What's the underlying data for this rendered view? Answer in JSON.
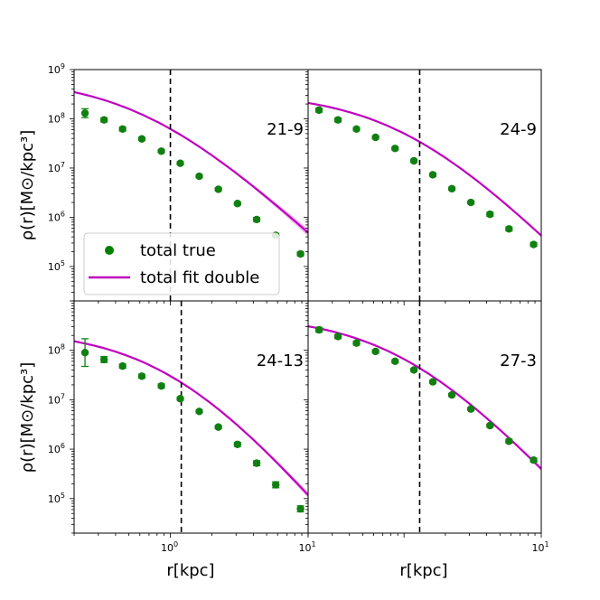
{
  "chart_data": {
    "type": "scatter",
    "layout": "2x2 grid, shared log axes",
    "x_scale": "log",
    "y_scale": "log",
    "xlim": [
      0.2,
      10
    ],
    "ylim": [
      20000,
      1000000000
    ],
    "xlabel": "r[kpc]",
    "ylabel": "ρ(r)[M⊙/kpc³]",
    "x_tick_labels": {
      "mantissa": "10",
      "exps": [
        "0",
        "1"
      ]
    },
    "y_tick_labels": {
      "mantissa": "10",
      "exps": [
        "5",
        "6",
        "7",
        "8",
        "9"
      ]
    },
    "legend": {
      "location": "lower-left of top-left panel",
      "entries": [
        {
          "label": "total true",
          "color": "#008000",
          "marker": "circle"
        },
        {
          "label": "total fit double",
          "color": "#bf00bf",
          "marker": "line"
        }
      ]
    },
    "colors": {
      "data": "#108010",
      "fit": "#c000c0",
      "band": "#e28ce2",
      "vline": "#000000"
    },
    "panels": [
      {
        "label": "21-9",
        "vline_x": 1.0,
        "true_points": [
          {
            "x": 0.24,
            "y": 130000000,
            "err": 0.09
          },
          {
            "x": 0.33,
            "y": 95000000,
            "err": 0.04
          },
          {
            "x": 0.45,
            "y": 62000000,
            "err": 0.04
          },
          {
            "x": 0.62,
            "y": 39000000,
            "err": 0.03
          },
          {
            "x": 0.86,
            "y": 22000000,
            "err": 0.03
          },
          {
            "x": 1.18,
            "y": 12500000,
            "err": 0.03
          },
          {
            "x": 1.62,
            "y": 6800000,
            "err": 0.03
          },
          {
            "x": 2.23,
            "y": 3700000,
            "err": 0.03
          },
          {
            "x": 3.07,
            "y": 1900000,
            "err": 0.03
          },
          {
            "x": 4.23,
            "y": 900000,
            "err": 0.04
          },
          {
            "x": 5.82,
            "y": 430000,
            "err": 0.04
          },
          {
            "x": 8.8,
            "y": 180000,
            "err": 0.04
          }
        ],
        "fit": {
          "rho0": 700000000,
          "rs": 0.65,
          "exponent": 2.6,
          "band": 0.08
        }
      },
      {
        "label": "24-9",
        "vline_x": 1.3,
        "true_points": [
          {
            "x": 0.24,
            "y": 150000000,
            "err": 0.04
          },
          {
            "x": 0.33,
            "y": 95000000,
            "err": 0.04
          },
          {
            "x": 0.45,
            "y": 62000000,
            "err": 0.03
          },
          {
            "x": 0.62,
            "y": 42000000,
            "err": 0.03
          },
          {
            "x": 0.86,
            "y": 25000000,
            "err": 0.03
          },
          {
            "x": 1.18,
            "y": 14000000,
            "err": 0.03
          },
          {
            "x": 1.62,
            "y": 7300000,
            "err": 0.03
          },
          {
            "x": 2.23,
            "y": 3800000,
            "err": 0.03
          },
          {
            "x": 3.07,
            "y": 2000000,
            "err": 0.03
          },
          {
            "x": 4.23,
            "y": 1150000,
            "err": 0.04
          },
          {
            "x": 5.82,
            "y": 580000,
            "err": 0.04
          },
          {
            "x": 8.8,
            "y": 280000,
            "err": 0.04
          }
        ],
        "fit": {
          "rho0": 350000000,
          "rs": 1.0,
          "exponent": 2.8,
          "band": 0.03
        }
      },
      {
        "label": "24-13",
        "vline_x": 1.2,
        "true_points": [
          {
            "x": 0.24,
            "y": 90000000,
            "err": 0.28
          },
          {
            "x": 0.33,
            "y": 65000000,
            "err": 0.06
          },
          {
            "x": 0.45,
            "y": 48000000,
            "err": 0.04
          },
          {
            "x": 0.62,
            "y": 30000000,
            "err": 0.04
          },
          {
            "x": 0.86,
            "y": 19000000,
            "err": 0.04
          },
          {
            "x": 1.18,
            "y": 10500000,
            "err": 0.03
          },
          {
            "x": 1.62,
            "y": 5800000,
            "err": 0.03
          },
          {
            "x": 2.23,
            "y": 2800000,
            "err": 0.03
          },
          {
            "x": 3.07,
            "y": 1250000,
            "err": 0.04
          },
          {
            "x": 4.23,
            "y": 520000,
            "err": 0.05
          },
          {
            "x": 5.82,
            "y": 190000,
            "err": 0.06
          },
          {
            "x": 8.8,
            "y": 62000,
            "err": 0.06
          }
        ],
        "fit": {
          "rho0": 270000000,
          "rs": 1.06,
          "exponent": 3.3,
          "band": 0.06
        }
      },
      {
        "label": "27-3",
        "vline_x": 1.3,
        "true_points": [
          {
            "x": 0.24,
            "y": 260000000,
            "err": 0.05
          },
          {
            "x": 0.33,
            "y": 190000000,
            "err": 0.04
          },
          {
            "x": 0.45,
            "y": 140000000,
            "err": 0.04
          },
          {
            "x": 0.62,
            "y": 95000000,
            "err": 0.03
          },
          {
            "x": 0.86,
            "y": 60000000,
            "err": 0.03
          },
          {
            "x": 1.18,
            "y": 40000000,
            "err": 0.03
          },
          {
            "x": 1.62,
            "y": 23000000,
            "err": 0.03
          },
          {
            "x": 2.23,
            "y": 12500000,
            "err": 0.03
          },
          {
            "x": 3.07,
            "y": 6500000,
            "err": 0.03
          },
          {
            "x": 4.23,
            "y": 3000000,
            "err": 0.03
          },
          {
            "x": 5.82,
            "y": 1450000,
            "err": 0.04
          },
          {
            "x": 8.8,
            "y": 600000,
            "err": 0.04
          }
        ],
        "fit": {
          "rho0": 530000000,
          "rs": 1.0,
          "exponent": 3.0,
          "band": 0.04
        }
      }
    ]
  }
}
